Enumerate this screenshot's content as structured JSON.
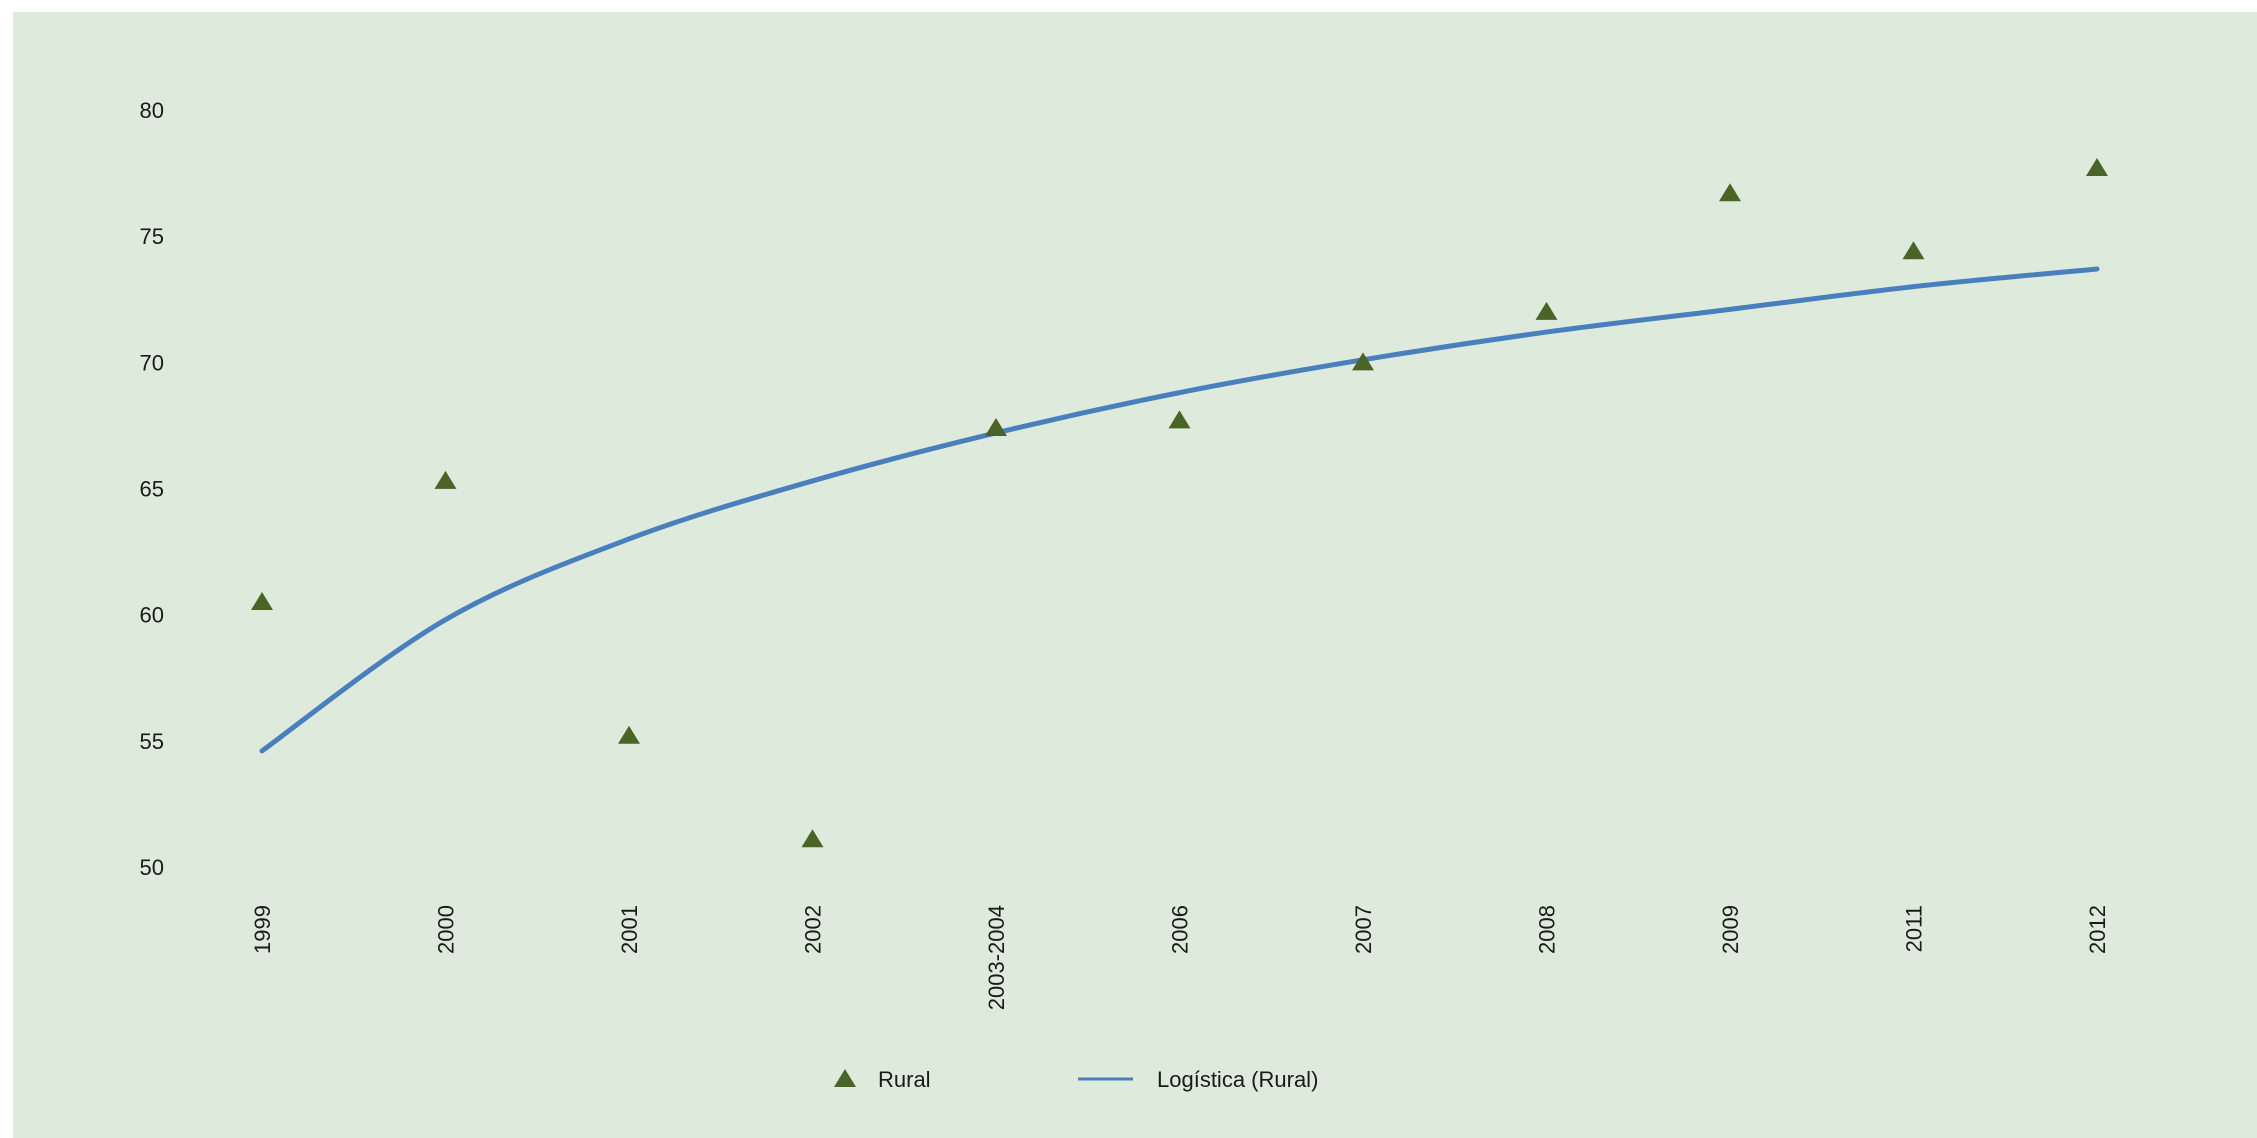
{
  "chart_data": {
    "type": "scatter",
    "categories": [
      "1999",
      "2000",
      "2001",
      "2002",
      "2003-2004",
      "2006",
      "2007",
      "2008",
      "2009",
      "2011",
      "2012"
    ],
    "ylim": [
      50,
      80
    ],
    "yticks": [
      50,
      55,
      60,
      65,
      70,
      75,
      80
    ],
    "grid": false,
    "legend_position": "bottom",
    "series": [
      {
        "name": "Rural",
        "marker": "triangle",
        "color": "#4a6427",
        "values": [
          60.5,
          65.3,
          55.2,
          51.1,
          67.4,
          67.7,
          70.0,
          72.0,
          76.7,
          74.4,
          77.7
        ]
      },
      {
        "name": "Logística (Rural)",
        "line": true,
        "color": "#4a7fbd",
        "values": [
          54.6,
          59.8,
          63.0,
          65.3,
          67.2,
          68.8,
          70.1,
          71.2,
          72.1,
          73.0,
          73.7
        ]
      }
    ]
  }
}
